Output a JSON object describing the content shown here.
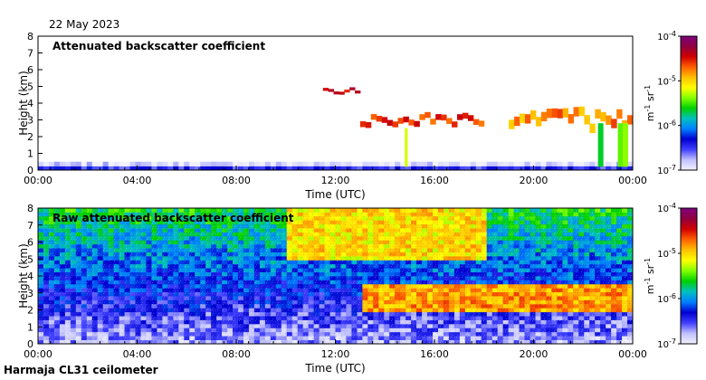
{
  "header": {
    "date": "22 May 2023"
  },
  "footer": {
    "instrument": "Harmaja CL31 ceilometer"
  },
  "colors": {
    "scale": [
      "#f2f2ff",
      "#c0c0ff",
      "#4040ff",
      "#0000d0",
      "#0080ff",
      "#00c0c0",
      "#00d000",
      "#80ff00",
      "#ffff00",
      "#ffc000",
      "#ff6000",
      "#d00000",
      "#900040",
      "#800080"
    ]
  },
  "chart_data": [
    {
      "type": "heatmap",
      "title": "Attenuated backscatter coefficient",
      "xlabel": "Time (UTC)",
      "ylabel": "Height (km)",
      "x_ticks": [
        "00:00",
        "04:00",
        "08:00",
        "12:00",
        "16:00",
        "20:00",
        "00:00"
      ],
      "xlim_hours": [
        0,
        24
      ],
      "y_ticks": [
        "0",
        "1",
        "2",
        "3",
        "4",
        "5",
        "6",
        "7",
        "8"
      ],
      "ylim": [
        0,
        8
      ],
      "colorbar": {
        "ticks": [
          "10-7",
          "10-6",
          "10-5",
          "10-4"
        ],
        "label": "m-1 sr-1",
        "range_log10": [
          -7,
          -4
        ]
      },
      "features": [
        {
          "name": "boundary-layer",
          "from_h": 0,
          "to_h": 24,
          "height_km": [
            0,
            0.5
          ],
          "log_backscatter": -6.6
        },
        {
          "name": "cloud-layer-mid",
          "from_h": 13.0,
          "to_h": 18.0,
          "height_km": [
            2.5,
            3.5
          ],
          "log_backscatter": -4.6
        },
        {
          "name": "cloud-layer-high",
          "from_h": 11.5,
          "to_h": 13.0,
          "height_km": [
            4.5,
            5.0
          ],
          "log_backscatter": -4.4
        },
        {
          "name": "precipitation-1500",
          "from_h": 14.6,
          "to_h": 15.2,
          "height_km": [
            0.2,
            2.5
          ],
          "log_backscatter": -5.2
        },
        {
          "name": "cloud-base-evening",
          "from_h": 19.0,
          "to_h": 24.0,
          "height_km": [
            2.2,
            3.8
          ],
          "log_backscatter": -4.8
        },
        {
          "name": "precipitation-2300",
          "from_h": 22.6,
          "to_h": 23.8,
          "height_km": [
            0.2,
            2.8
          ],
          "log_backscatter": -5.5
        }
      ]
    },
    {
      "type": "heatmap",
      "title": "Raw attenuated backscatter coefficient",
      "xlabel": "Time (UTC)",
      "ylabel": "Height (km)",
      "x_ticks": [
        "00:00",
        "04:00",
        "08:00",
        "12:00",
        "16:00",
        "20:00",
        "00:00"
      ],
      "xlim_hours": [
        0,
        24
      ],
      "y_ticks": [
        "0",
        "1",
        "2",
        "3",
        "4",
        "5",
        "6",
        "7",
        "8"
      ],
      "ylim": [
        0,
        8
      ],
      "colorbar": {
        "ticks": [
          "10-7",
          "10-6",
          "10-5",
          "10-4"
        ],
        "label": "m-1 sr-1",
        "range_log10": [
          -7,
          -4
        ]
      },
      "features": [
        {
          "name": "noise-background",
          "from_h": 0,
          "to_h": 24,
          "height_km": [
            0,
            8
          ],
          "log_backscatter": -5.8
        },
        {
          "name": "noisy-high-levels-midday",
          "from_h": 10.0,
          "to_h": 18.0,
          "height_km": [
            5.0,
            8.0
          ],
          "log_backscatter": -4.8
        },
        {
          "name": "cloud-layer",
          "from_h": 13.0,
          "to_h": 24.0,
          "height_km": [
            2.0,
            3.5
          ],
          "log_backscatter": -4.6
        }
      ]
    }
  ]
}
